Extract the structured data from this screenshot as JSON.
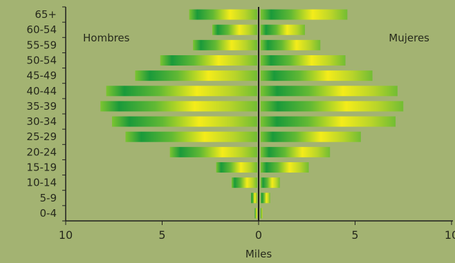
{
  "chart_data": {
    "type": "bar",
    "orientation": "horizontal",
    "layout": "population-pyramid",
    "categories": [
      "65+",
      "60-54",
      "55-59",
      "50-54",
      "45-49",
      "40-44",
      "35-39",
      "30-34",
      "25-29",
      "20-24",
      "15-19",
      "10-14",
      "5-9",
      "0-4"
    ],
    "series": [
      {
        "name": "Hombres",
        "values": [
          3.6,
          2.4,
          3.4,
          5.1,
          6.4,
          7.9,
          8.2,
          7.6,
          6.9,
          4.6,
          2.2,
          1.4,
          0.4,
          0.2
        ]
      },
      {
        "name": "Mujeres",
        "values": [
          4.6,
          2.4,
          3.2,
          4.5,
          5.9,
          7.2,
          7.5,
          7.1,
          5.3,
          3.7,
          2.6,
          1.1,
          0.6,
          0.2
        ]
      }
    ],
    "xlabel": "Miles",
    "xlim": [
      -10,
      10
    ],
    "xticks": [
      {
        "value": -10,
        "label": "10"
      },
      {
        "value": -5,
        "label": "5"
      },
      {
        "value": 0,
        "label": "0"
      },
      {
        "value": 5,
        "label": "5"
      },
      {
        "value": 10,
        "label": "10"
      }
    ],
    "grid": false,
    "colors": {
      "background": "#a3b372",
      "bar_dark": "#1a9a3a",
      "bar_mid": "#7cc431",
      "bar_light": "#f4ec1a",
      "axis": "#1c1c1c",
      "label": "#26291c"
    }
  }
}
